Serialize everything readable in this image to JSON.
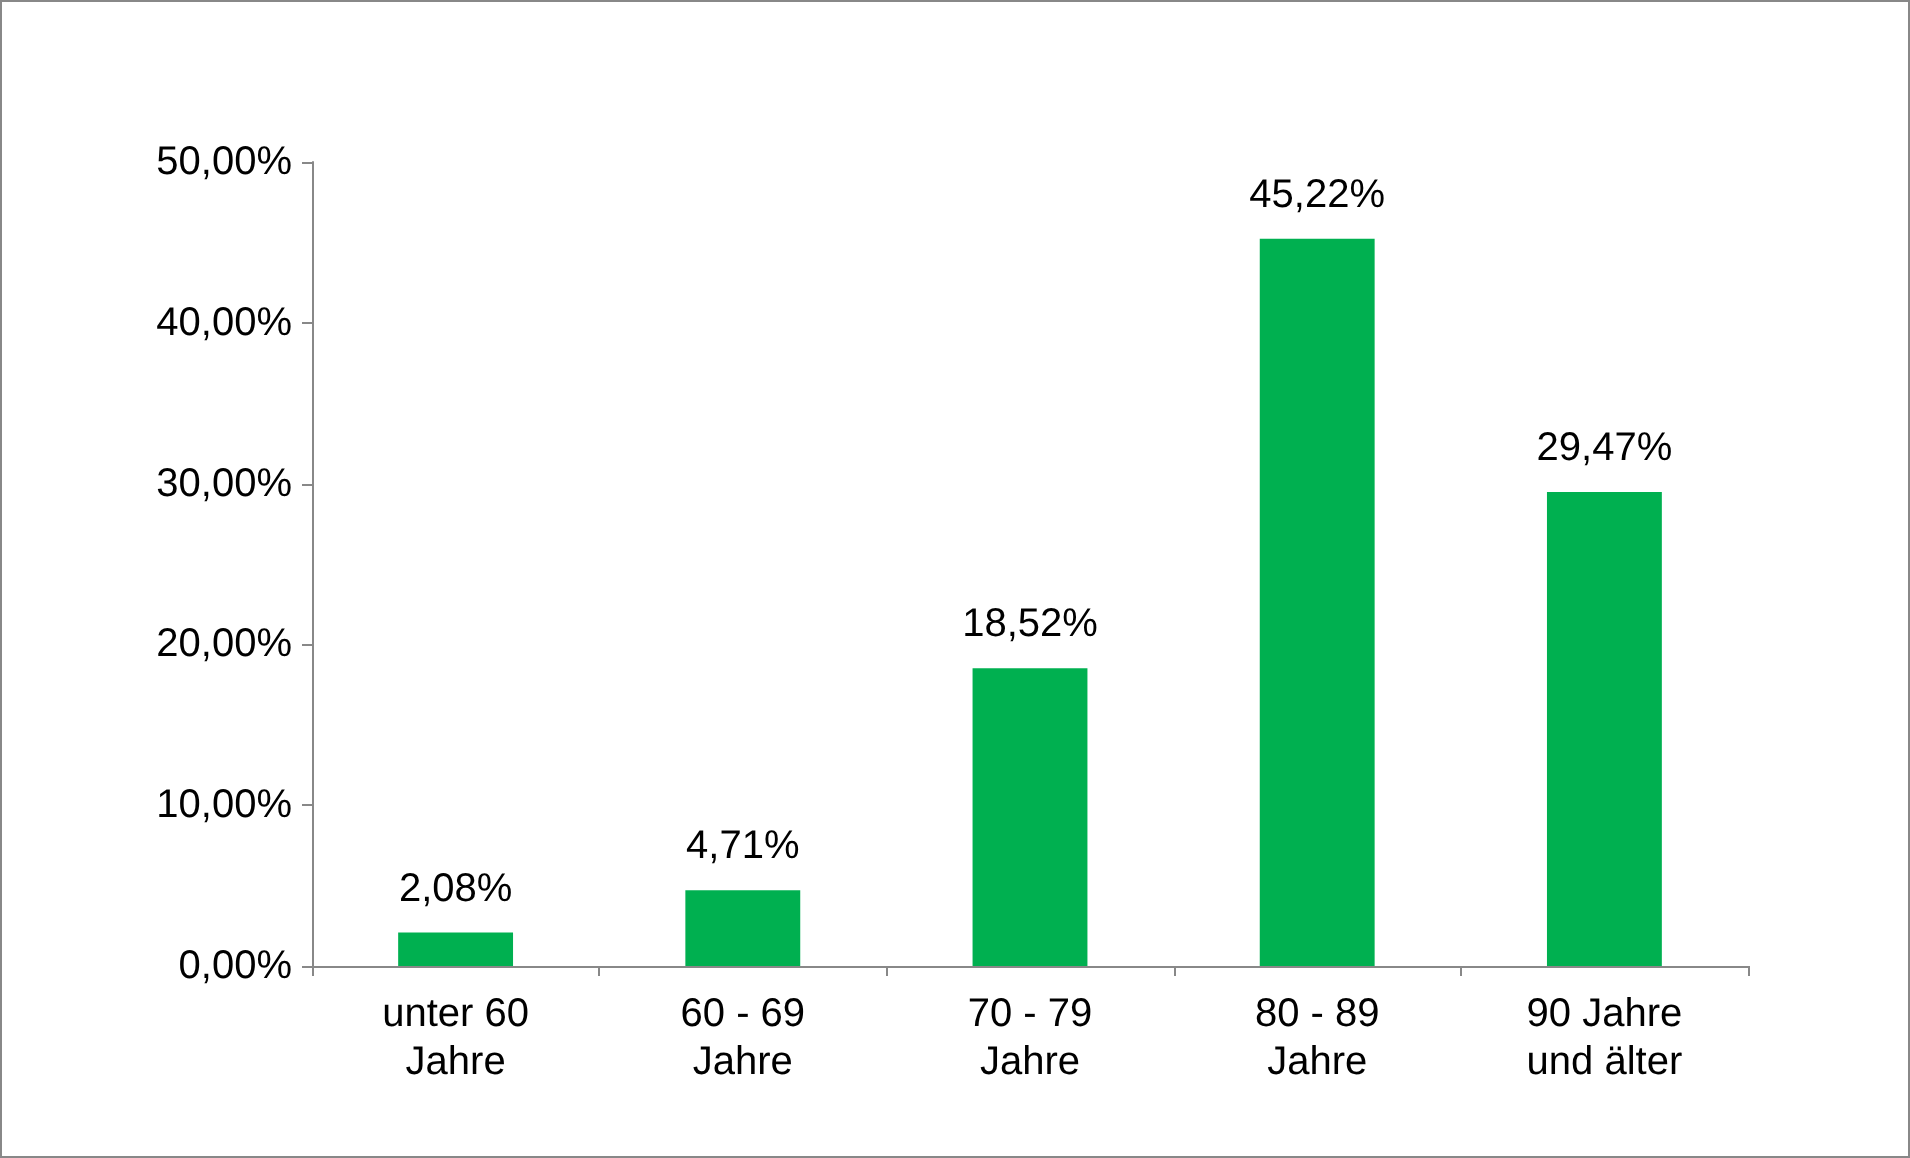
{
  "chart_data": {
    "type": "bar",
    "categories": [
      "unter 60\nJahre",
      "60 - 69\nJahre",
      "70 - 79\nJahre",
      "80 - 89\nJahre",
      "90 Jahre\nund älter"
    ],
    "values": [
      2.08,
      4.71,
      18.52,
      45.22,
      29.47
    ],
    "value_labels": [
      "2,08%",
      "4,71%",
      "18,52%",
      "45,22%",
      "29,47%"
    ],
    "color": "#00b050",
    "ylim": [
      0,
      50
    ],
    "yticks": [
      {
        "value": 0,
        "label": "0,00%"
      },
      {
        "value": 10,
        "label": "10,00%"
      },
      {
        "value": 20,
        "label": "20,00%"
      },
      {
        "value": 30,
        "label": "30,00%"
      },
      {
        "value": 40,
        "label": "40,00%"
      },
      {
        "value": 50,
        "label": "50,00%"
      }
    ],
    "grid": false
  }
}
